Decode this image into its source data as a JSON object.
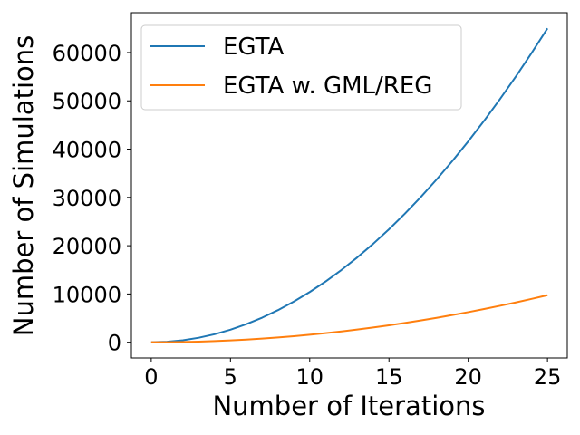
{
  "chart_data": {
    "type": "line",
    "title": "",
    "xlabel": "Number of Iterations",
    "ylabel": "Number of Simulations",
    "xlim": [
      -1.25,
      26.25
    ],
    "ylim": [
      -3250,
      68250
    ],
    "xticks": [
      0,
      5,
      10,
      15,
      20,
      25
    ],
    "yticks": [
      0,
      10000,
      20000,
      30000,
      40000,
      50000,
      60000
    ],
    "grid": false,
    "legend_position": "top-left",
    "x": [
      0,
      1,
      2,
      3,
      4,
      5,
      6,
      7,
      8,
      9,
      10,
      11,
      12,
      13,
      14,
      15,
      16,
      17,
      18,
      19,
      20,
      21,
      22,
      23,
      24,
      25
    ],
    "series": [
      {
        "name": "EGTA",
        "color": "#1f77b4",
        "values": [
          0,
          104,
          416,
          936,
          1664,
          2600,
          3744,
          5096,
          6656,
          8424,
          10400,
          12584,
          14976,
          17576,
          20384,
          23400,
          26624,
          30056,
          33696,
          37544,
          41600,
          45864,
          50336,
          55016,
          59904,
          65000
        ]
      },
      {
        "name": "EGTA w. GML/REG",
        "color": "#ff7f0e",
        "values": [
          0,
          16,
          62,
          140,
          250,
          390,
          562,
          764,
          998,
          1264,
          1560,
          1888,
          2246,
          2636,
          3058,
          3510,
          3994,
          4508,
          5054,
          5632,
          6240,
          6880,
          7550,
          8252,
          8986,
          9750
        ]
      }
    ]
  }
}
